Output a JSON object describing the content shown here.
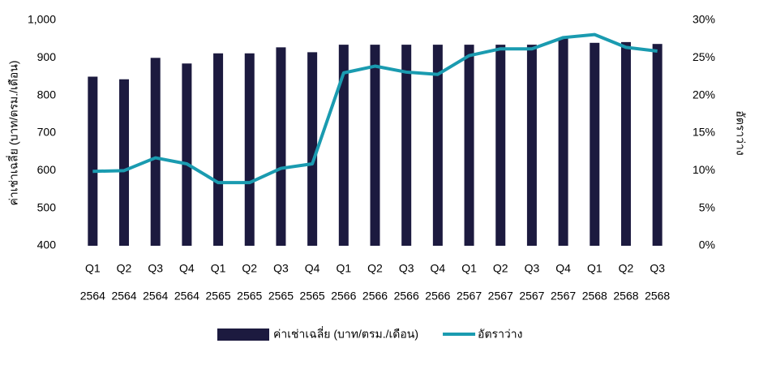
{
  "chart_data": {
    "type": "bar-line",
    "categories": [
      [
        "Q1",
        "2564"
      ],
      [
        "Q2",
        "2564"
      ],
      [
        "Q3",
        "2564"
      ],
      [
        "Q4",
        "2564"
      ],
      [
        "Q1",
        "2565"
      ],
      [
        "Q2",
        "2565"
      ],
      [
        "Q3",
        "2565"
      ],
      [
        "Q4",
        "2565"
      ],
      [
        "Q1",
        "2566"
      ],
      [
        "Q2",
        "2566"
      ],
      [
        "Q3",
        "2566"
      ],
      [
        "Q4",
        "2566"
      ],
      [
        "Q1",
        "2567"
      ],
      [
        "Q2",
        "2567"
      ],
      [
        "Q3",
        "2567"
      ],
      [
        "Q4",
        "2567"
      ],
      [
        "Q1",
        "2568"
      ],
      [
        "Q2",
        "2568"
      ],
      [
        "Q3",
        "2568"
      ]
    ],
    "series": [
      {
        "name": "ค่าเช่าเฉลี่ย (บาท/ตรม./เดือน)",
        "type": "bar",
        "color": "#1c1a3f",
        "values": [
          850,
          843,
          900,
          885,
          912,
          912,
          928,
          915,
          935,
          935,
          935,
          935,
          935,
          935,
          935,
          952,
          940,
          942,
          937
        ]
      },
      {
        "name": "อัตราว่าง",
        "type": "line",
        "axis": "y2",
        "color": "#1a9bb0",
        "values": [
          9.9,
          10.0,
          11.7,
          10.9,
          8.4,
          8.4,
          10.3,
          10.9,
          23.0,
          23.9,
          23.1,
          22.8,
          25.3,
          26.2,
          26.2,
          27.7,
          28.1,
          26.4,
          25.9
        ]
      }
    ],
    "y_label": "ค่าเช่าเฉลี่ย (บาท/ตรม./เดือน)",
    "y2_label": "อัตราว่าง",
    "ylim": [
      400,
      1000
    ],
    "yticks": [
      400,
      500,
      600,
      700,
      800,
      900,
      {
        "value": 1000,
        "label": "1,000"
      }
    ],
    "y2lim": [
      0,
      30
    ],
    "y2ticks": [
      {
        "value": 0,
        "label": "0%"
      },
      {
        "value": 5,
        "label": "5%"
      },
      {
        "value": 10,
        "label": "10%"
      },
      {
        "value": 15,
        "label": "15%"
      },
      {
        "value": 20,
        "label": "20%"
      },
      {
        "value": 25,
        "label": "25%"
      },
      {
        "value": 30,
        "label": "30%"
      }
    ],
    "grid": false,
    "legend": "bottom"
  }
}
